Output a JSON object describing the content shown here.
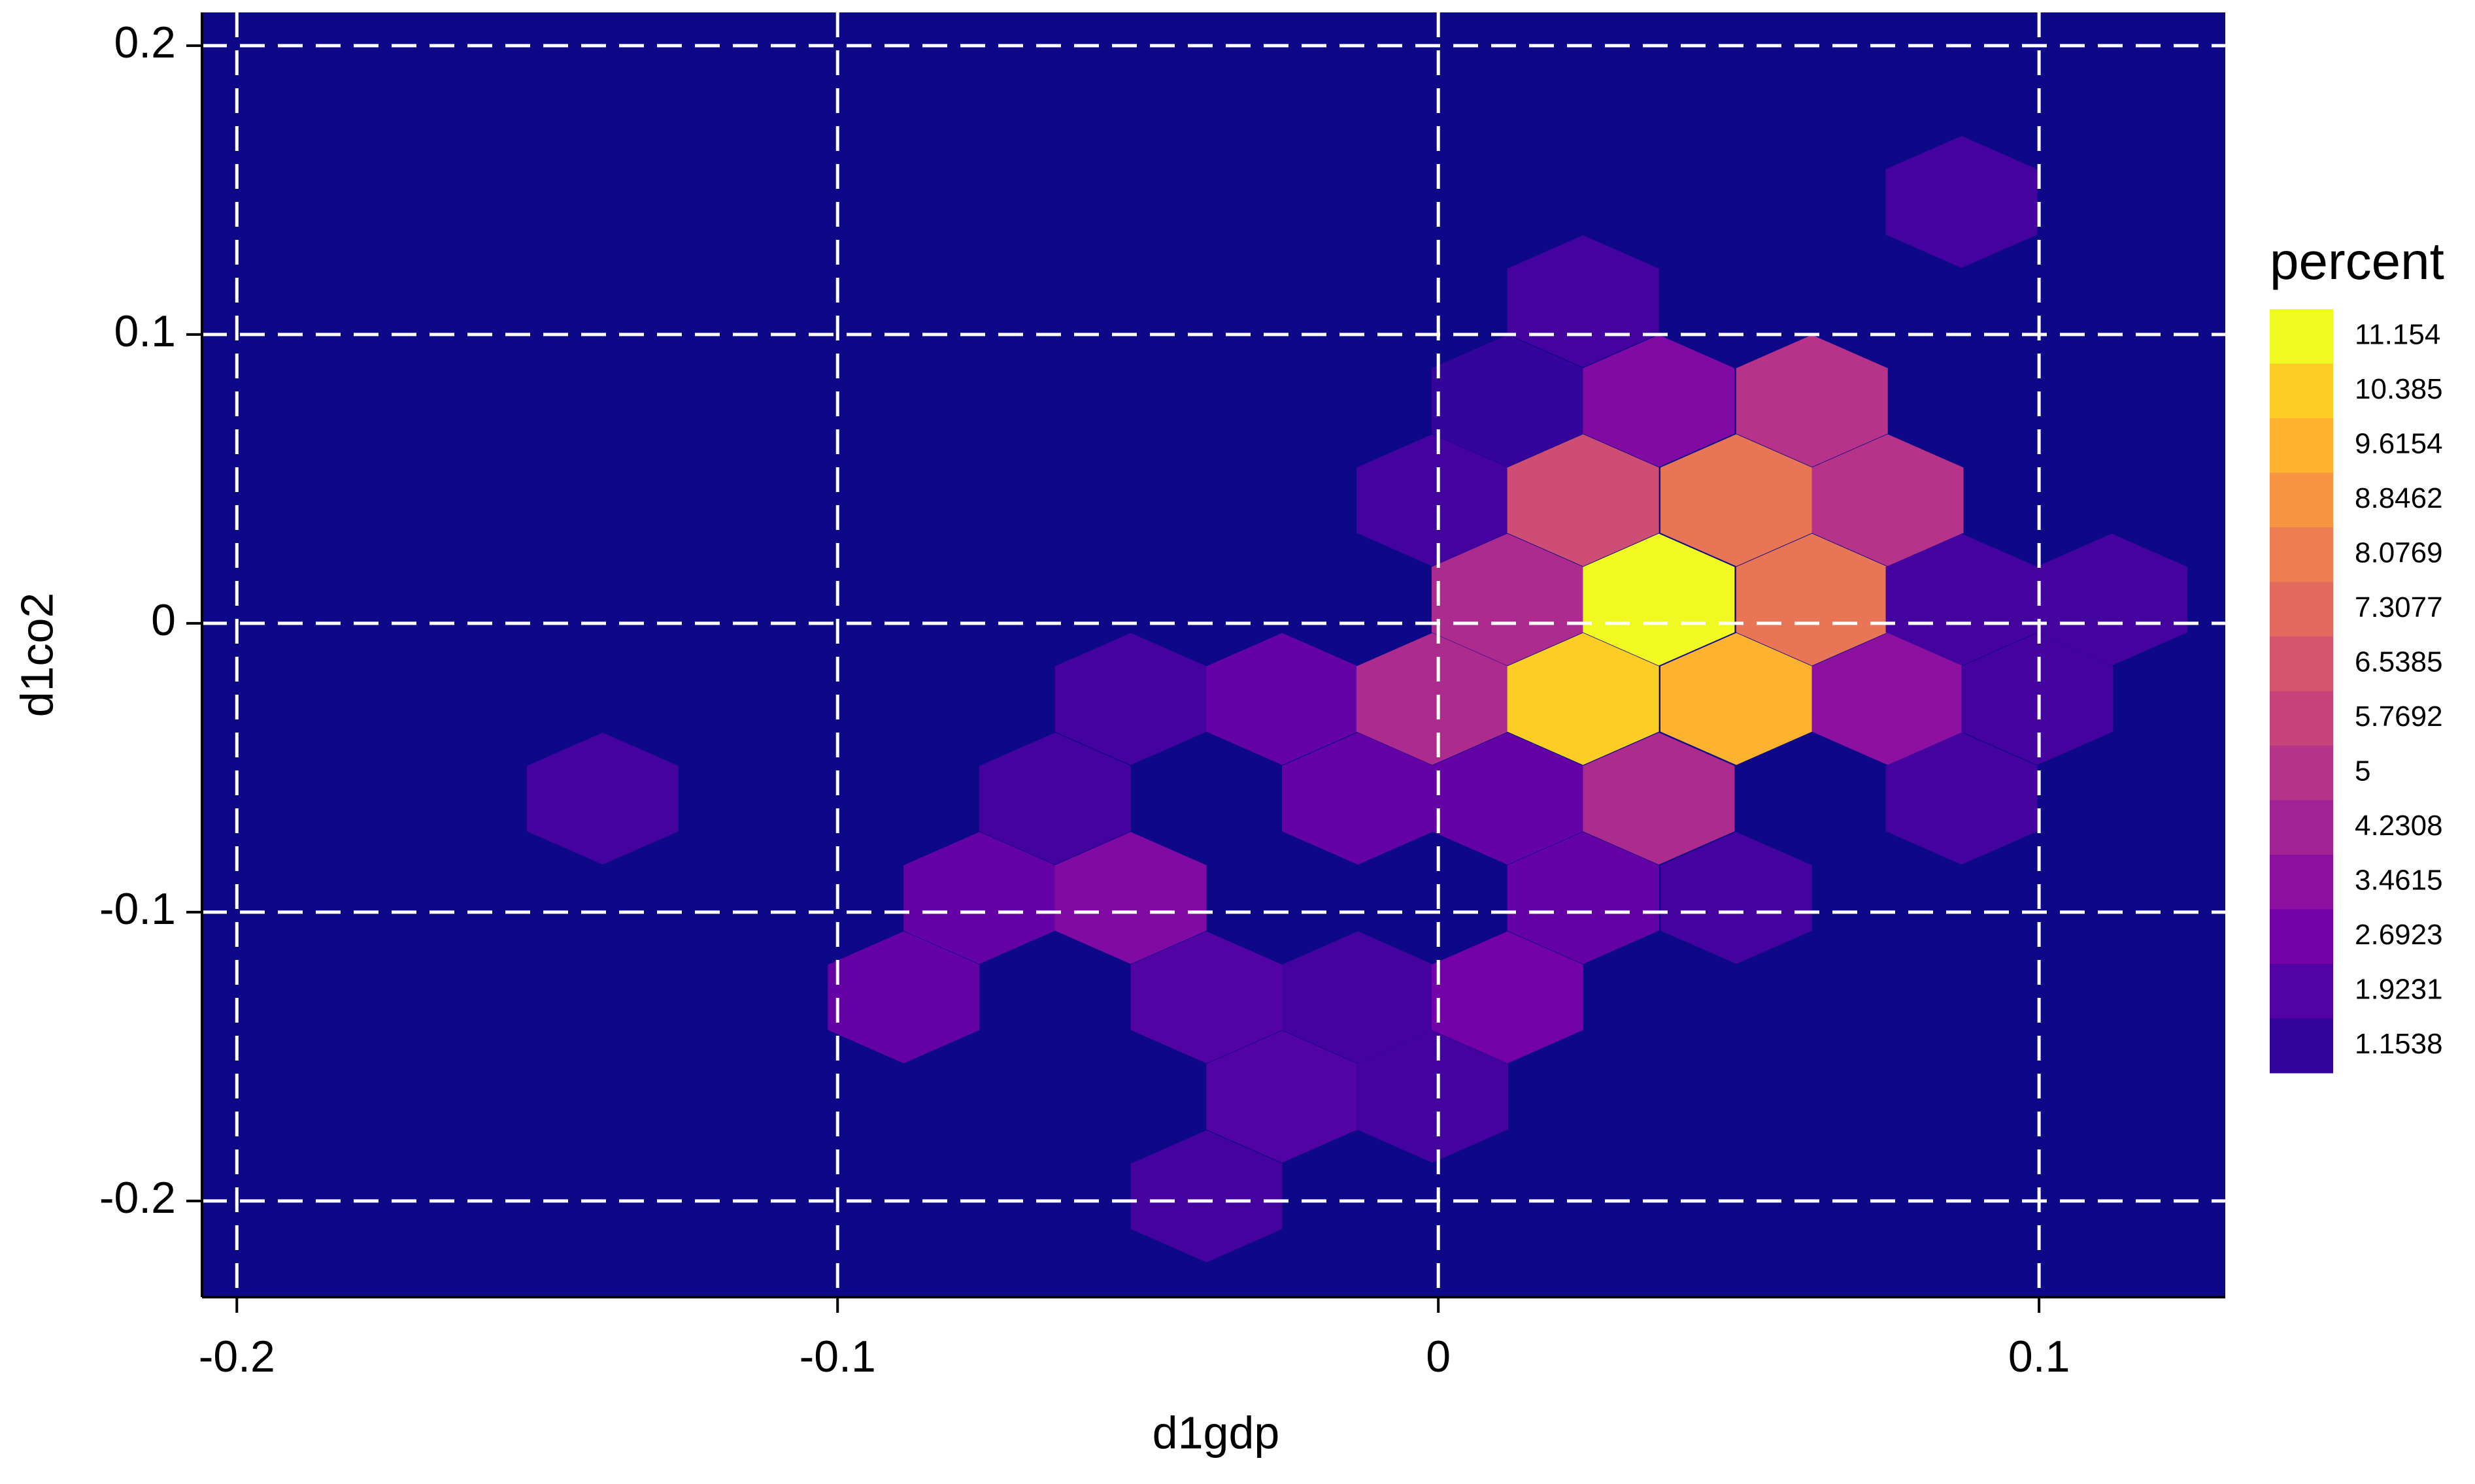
{
  "chart_data": {
    "type": "hexbin",
    "x_label": "d1gdp",
    "y_label": "d1co2",
    "xlim": [
      -0.2058,
      0.131
    ],
    "ylim": [
      -0.2333,
      0.2115
    ],
    "xticks": [
      -0.2,
      -0.1,
      0,
      0.1
    ],
    "yticks": [
      0.2,
      0.1,
      0,
      -0.1,
      -0.2
    ],
    "grid": true,
    "background": "#0d0887",
    "x": [
      0.0871,
      0.0241,
      0.0115,
      0.0367,
      0.0622,
      -0.001,
      0.0241,
      0.0496,
      0.0748,
      0.0115,
      0.0367,
      0.0622,
      0.0871,
      0.1121,
      -0.0512,
      -0.026,
      -0.001,
      0.0241,
      0.0496,
      0.0748,
      0.0997,
      -0.1391,
      -0.0638,
      -0.0134,
      0.0115,
      0.0367,
      0.0871,
      -0.0764,
      -0.0512,
      0.0241,
      0.0496,
      -0.089,
      -0.0386,
      -0.0134,
      0.0115,
      -0.026,
      -0.001,
      -0.0386
    ],
    "y": [
      0.1459,
      0.1115,
      0.077,
      0.077,
      0.077,
      0.0426,
      0.0426,
      0.0426,
      0.0426,
      0.0082,
      0.0082,
      0.0082,
      0.0082,
      0.0082,
      -0.0262,
      -0.0262,
      -0.0262,
      -0.0262,
      -0.0262,
      -0.0262,
      -0.0262,
      -0.0607,
      -0.0607,
      -0.0607,
      -0.0607,
      -0.0607,
      -0.0607,
      -0.0951,
      -0.0951,
      -0.0951,
      -0.0951,
      -0.1295,
      -0.1295,
      -0.1295,
      -0.1295,
      -0.1639,
      -0.1639,
      -0.1984
    ],
    "values": [
      1.5385,
      1.5385,
      1.1538,
      3.0769,
      5.0,
      1.5385,
      6.1538,
      7.6923,
      5.0,
      4.6154,
      11.154,
      7.6923,
      1.5385,
      1.5385,
      1.5385,
      2.3077,
      4.6154,
      10.385,
      9.6154,
      3.4615,
      1.5385,
      1.5385,
      1.5385,
      2.3077,
      2.3077,
      4.6154,
      1.5385,
      2.3077,
      3.0769,
      2.3077,
      1.5385,
      2.3077,
      1.9231,
      1.5385,
      2.6923,
      1.9231,
      1.5385,
      1.5385
    ],
    "colorbar": {
      "title": "percent",
      "ticks": [
        11.154,
        10.385,
        9.6154,
        8.8462,
        8.0769,
        7.3077,
        6.5385,
        5.7692,
        5,
        4.2308,
        3.4615,
        2.6923,
        1.9231,
        1.1538
      ],
      "colors": [
        "#f0f921",
        "#fcce25",
        "#fdb32f",
        "#f89540",
        "#ef7e50",
        "#e36b5d",
        "#d5566d",
        "#c7447b",
        "#b73389",
        "#a32295",
        "#8e10a0",
        "#7401a8",
        "#5302a3",
        "#35049a"
      ]
    }
  }
}
